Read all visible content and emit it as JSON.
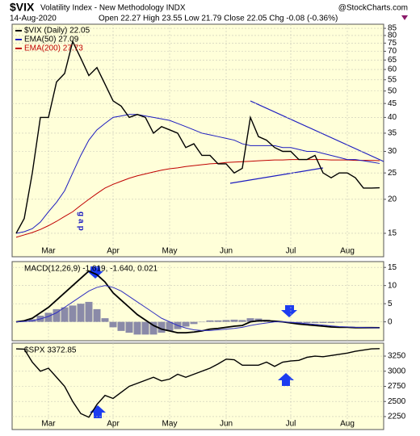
{
  "chart_data": [
    {
      "type": "line",
      "symbol": "$VIX",
      "title": "Volatility Index - New Methodology INDX",
      "source": "@StockCharts.com",
      "date": "14-Aug-2020",
      "quote": "Open 22.27 High 23.55 Low 21.79 Close 22.05 Chg -0.08 (-0.36%)",
      "annotation": "gap",
      "log_scale": true,
      "grid": true,
      "categories": [
        null,
        null,
        null,
        null,
        "Mar",
        null,
        null,
        null,
        null,
        null,
        null,
        null,
        "Apr",
        null,
        null,
        null,
        null,
        null,
        null,
        "May",
        null,
        null,
        null,
        null,
        null,
        null,
        "Jun",
        null,
        null,
        null,
        null,
        null,
        null,
        null,
        "Jul",
        null,
        null,
        null,
        null,
        null,
        null,
        "Aug",
        null,
        null,
        null,
        null
      ],
      "series": [
        {
          "name": "$VIX (Daily) 22.05",
          "color": "#000000",
          "values": [
            15,
            17,
            25,
            40,
            40,
            54,
            58,
            76,
            66,
            57,
            61,
            53,
            46,
            44,
            40,
            41,
            40,
            35,
            37,
            36,
            35,
            31,
            32,
            29,
            29,
            27,
            27,
            25,
            26,
            40,
            34,
            33,
            31,
            30,
            30,
            28,
            28,
            29,
            25,
            24,
            25,
            25,
            24,
            22,
            22,
            22.05
          ]
        },
        {
          "name": "EMA(50) 27.09",
          "color": "#1c1cc0",
          "values": [
            15,
            15.2,
            15.6,
            16.5,
            18,
            19.5,
            21.5,
            25,
            29,
            33,
            36,
            38,
            40,
            40.5,
            41,
            41,
            40.5,
            40,
            39.5,
            39,
            38,
            37,
            36,
            35,
            34.5,
            34,
            33.5,
            33,
            32,
            31.5,
            31.5,
            31.5,
            31.5,
            31,
            31,
            30.5,
            30,
            30,
            29.5,
            29,
            28.5,
            28,
            28,
            27.7,
            27.4,
            27.09
          ]
        },
        {
          "name": "EMA(200) 27.73",
          "color": "#c00000",
          "values": [
            14.5,
            14.8,
            15.1,
            15.5,
            16,
            16.6,
            17.3,
            18,
            19,
            20,
            21,
            22,
            22.7,
            23.3,
            23.9,
            24.4,
            24.8,
            25.2,
            25.6,
            25.9,
            26.1,
            26.4,
            26.6,
            26.8,
            27,
            27.1,
            27.3,
            27.4,
            27.5,
            27.6,
            27.7,
            27.8,
            27.9,
            27.9,
            28,
            28,
            28,
            28,
            28,
            27.9,
            27.9,
            27.9,
            27.8,
            27.8,
            27.8,
            27.73
          ]
        }
      ],
      "ylim": [
        12.3,
        88
      ],
      "yticks": [
        15,
        20,
        25,
        30,
        35,
        40,
        45,
        50,
        55,
        60,
        65,
        70,
        75,
        80,
        85
      ]
    },
    {
      "type": "macd",
      "title": "MACD(12,26,9) -1.619, -1.640, 0.021",
      "grid": true,
      "series": [
        {
          "kind": "line",
          "color": "#000000",
          "values": [
            0,
            0.3,
            1,
            2.5,
            4,
            6,
            8,
            10,
            12,
            14,
            13,
            11,
            8,
            6,
            4,
            2,
            0.5,
            -1,
            -2,
            -2.5,
            -3,
            -3,
            -2.8,
            -2.5,
            -2,
            -1.8,
            -1.5,
            -1.2,
            -1,
            0,
            0.3,
            0.3,
            0.2,
            0,
            -0.3,
            -0.6,
            -0.8,
            -1,
            -1.2,
            -1.4,
            -1.5,
            -1.5,
            -1.6,
            -1.6,
            -1.6,
            -1.619
          ]
        },
        {
          "kind": "line",
          "color": "#3030c0",
          "values": [
            0,
            0.1,
            0.3,
            0.8,
            1.5,
            2.5,
            4,
            5.5,
            7,
            8.5,
            9.5,
            10,
            9.5,
            8.5,
            7,
            5.5,
            4,
            2.5,
            1,
            0,
            -1,
            -1.7,
            -2.2,
            -2.4,
            -2.4,
            -2.2,
            -2,
            -1.8,
            -1.5,
            -1,
            -0.6,
            -0.3,
            0,
            0,
            -0.1,
            -0.3,
            -0.5,
            -0.7,
            -0.9,
            -1.1,
            -1.3,
            -1.4,
            -1.5,
            -1.55,
            -1.6,
            -1.64
          ]
        },
        {
          "kind": "histogram",
          "color": "#8a8aa8",
          "values": [
            0,
            0.2,
            0.7,
            1.7,
            2.5,
            3.5,
            4,
            4.5,
            5,
            5.5,
            3.5,
            1,
            -1.5,
            -2.5,
            -3,
            -3.5,
            -3.5,
            -3.5,
            -3,
            -2.5,
            -2,
            -1.3,
            -0.6,
            -0.1,
            0.4,
            0.4,
            0.5,
            0.6,
            0.5,
            1,
            0.9,
            0.6,
            0.2,
            0,
            -0.2,
            -0.3,
            -0.3,
            -0.3,
            -0.3,
            -0.3,
            -0.2,
            -0.1,
            -0.1,
            -0.05,
            0,
            0.021
          ]
        }
      ],
      "ylim": [
        -5.2,
        16.6
      ],
      "yticks": [
        15,
        10,
        5,
        0
      ]
    },
    {
      "type": "line",
      "title": "$SPX 3372.85",
      "grid": true,
      "categories": [
        null,
        null,
        null,
        null,
        "Mar",
        null,
        null,
        null,
        null,
        null,
        null,
        null,
        "Apr",
        null,
        null,
        null,
        null,
        null,
        null,
        "May",
        null,
        null,
        null,
        null,
        null,
        null,
        "Jun",
        null,
        null,
        null,
        null,
        null,
        null,
        null,
        "Jul",
        null,
        null,
        null,
        null,
        null,
        null,
        "Aug",
        null,
        null,
        null,
        null
      ],
      "series": [
        {
          "color": "#000000",
          "values": [
            3370,
            3365,
            3150,
            3000,
            3050,
            2900,
            2750,
            2500,
            2300,
            2240,
            2450,
            2600,
            2550,
            2650,
            2750,
            2800,
            2850,
            2900,
            2840,
            2870,
            2950,
            2900,
            2950,
            3000,
            3050,
            3120,
            3200,
            3190,
            3100,
            3100,
            3100,
            3150,
            3080,
            3150,
            3170,
            3180,
            3230,
            3250,
            3240,
            3260,
            3280,
            3300,
            3330,
            3350,
            3370,
            3372.85
          ]
        }
      ],
      "ylim": [
        2036,
        3464
      ],
      "yticks": [
        3250,
        3000,
        2750,
        2500,
        2250
      ]
    }
  ]
}
